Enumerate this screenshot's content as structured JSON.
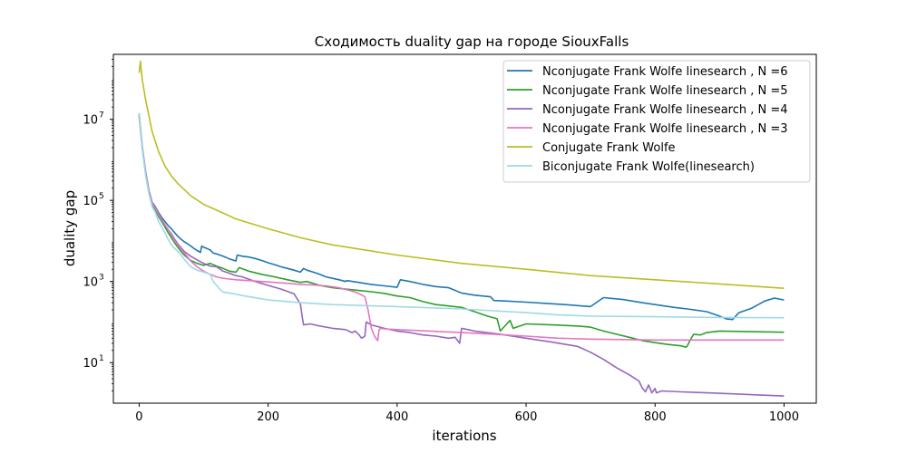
{
  "chart_data": {
    "type": "line",
    "title": "Сходимость duality gap на городе SiouxFalls",
    "xlabel": "iterations",
    "ylabel": "duality gap",
    "xlim": [
      -40,
      1050
    ],
    "ylim_log10": [
      0.0,
      8.6
    ],
    "y_scale": "log",
    "grid": false,
    "legend_position": "top-right",
    "x_ticks": [
      0,
      200,
      400,
      600,
      800,
      1000
    ],
    "x_tick_labels": [
      "0",
      "200",
      "400",
      "600",
      "800",
      "1000"
    ],
    "y_ticks_log10": [
      1,
      3,
      5,
      7
    ],
    "y_tick_labels": [
      "10",
      "10",
      "10",
      "10"
    ],
    "y_tick_exponents": [
      "1",
      "3",
      "5",
      "7"
    ],
    "series": [
      {
        "name": "Nconjugate Frank Wolfe linesearch , N =6",
        "color": "#1f77b4",
        "x": [
          0,
          5,
          10,
          15,
          20,
          25,
          30,
          35,
          40,
          45,
          50,
          55,
          60,
          65,
          70,
          75,
          80,
          85,
          90,
          95,
          97,
          100,
          105,
          110,
          115,
          120,
          125,
          130,
          135,
          140,
          145,
          150,
          152,
          160,
          170,
          180,
          190,
          200,
          210,
          220,
          230,
          240,
          250,
          255,
          260,
          270,
          280,
          290,
          300,
          310,
          320,
          322,
          340,
          360,
          380,
          400,
          405,
          420,
          440,
          460,
          480,
          500,
          520,
          545,
          550,
          570,
          600,
          630,
          660,
          700,
          720,
          750,
          780,
          800,
          830,
          850,
          880,
          900,
          910,
          920,
          930,
          950,
          970,
          985,
          1000
        ],
        "y": [
          14000000,
          2000000,
          500000,
          180000,
          90000,
          70000,
          50000,
          38000,
          30000,
          24000,
          20000,
          16000,
          13000,
          11000,
          9500,
          8500,
          7500,
          6500,
          5800,
          5200,
          7500,
          7000,
          6500,
          6000,
          5000,
          4800,
          4500,
          4200,
          3900,
          3600,
          3400,
          3200,
          4500,
          4200,
          4000,
          3700,
          3300,
          2900,
          2600,
          2300,
          2100,
          1900,
          1700,
          2100,
          1900,
          1700,
          1500,
          1300,
          1200,
          1100,
          1000,
          1050,
          950,
          850,
          780,
          720,
          1100,
          1000,
          850,
          750,
          700,
          520,
          460,
          420,
          340,
          330,
          310,
          290,
          270,
          240,
          400,
          360,
          300,
          270,
          230,
          210,
          180,
          140,
          120,
          115,
          170,
          220,
          330,
          390,
          350
        ]
      },
      {
        "name": "Nconjugate Frank Wolfe linesearch , N =5",
        "color": "#2ca02c",
        "x": [
          0,
          5,
          10,
          15,
          20,
          25,
          30,
          35,
          40,
          45,
          50,
          55,
          60,
          65,
          70,
          75,
          80,
          90,
          100,
          110,
          120,
          130,
          140,
          150,
          155,
          170,
          190,
          210,
          230,
          250,
          260,
          280,
          300,
          320,
          340,
          360,
          380,
          400,
          420,
          440,
          460,
          480,
          500,
          520,
          540,
          555,
          560,
          575,
          580,
          600,
          640,
          680,
          700,
          720,
          740,
          760,
          780,
          800,
          820,
          840,
          848,
          850,
          856,
          860,
          870,
          880,
          900,
          950,
          1000
        ],
        "y": [
          12000000,
          1800000,
          450000,
          160000,
          80000,
          60000,
          40000,
          30000,
          22000,
          16000,
          12000,
          9000,
          7000,
          5500,
          4500,
          3800,
          3300,
          2800,
          2500,
          2800,
          2400,
          2100,
          1800,
          1700,
          2200,
          1800,
          1500,
          1300,
          1100,
          950,
          1000,
          800,
          700,
          650,
          600,
          560,
          510,
          440,
          400,
          320,
          270,
          250,
          230,
          180,
          140,
          120,
          60,
          110,
          70,
          90,
          85,
          80,
          75,
          60,
          50,
          42,
          35,
          31,
          28,
          26,
          24,
          26,
          40,
          50,
          48,
          55,
          60,
          58,
          56
        ]
      },
      {
        "name": "Nconjugate Frank Wolfe linesearch , N =4",
        "color": "#9467bd",
        "x": [
          0,
          5,
          10,
          15,
          20,
          25,
          30,
          35,
          40,
          45,
          50,
          55,
          60,
          65,
          70,
          80,
          90,
          100,
          110,
          120,
          130,
          140,
          150,
          160,
          180,
          200,
          220,
          240,
          250,
          253,
          255,
          265,
          280,
          300,
          320,
          330,
          335,
          340,
          345,
          350,
          352,
          360,
          380,
          400,
          420,
          440,
          460,
          480,
          490,
          497,
          500,
          510,
          520,
          560,
          600,
          640,
          680,
          700,
          720,
          740,
          760,
          775,
          780,
          785,
          790,
          795,
          800,
          802,
          810,
          840,
          880,
          920,
          960,
          1000
        ],
        "y": [
          13000000,
          1900000,
          470000,
          170000,
          85000,
          65000,
          45000,
          33000,
          25000,
          19000,
          15000,
          11000,
          8500,
          6800,
          5500,
          4200,
          3400,
          2800,
          2400,
          2300,
          1800,
          1600,
          1400,
          1300,
          1000,
          800,
          650,
          500,
          280,
          130,
          85,
          90,
          80,
          70,
          65,
          55,
          60,
          50,
          40,
          45,
          100,
          85,
          70,
          60,
          55,
          48,
          45,
          40,
          42,
          30,
          70,
          65,
          60,
          50,
          40,
          32,
          25,
          18,
          12,
          7.5,
          5,
          3.5,
          2.4,
          1.9,
          2.8,
          1.8,
          2.3,
          1.8,
          2.0,
          1.9,
          1.8,
          1.7,
          1.6,
          1.5
        ]
      },
      {
        "name": "Nconjugate Frank Wolfe linesearch , N =3",
        "color": "#e377c2",
        "x": [
          0,
          5,
          10,
          15,
          20,
          25,
          30,
          35,
          40,
          45,
          50,
          55,
          60,
          70,
          80,
          90,
          100,
          110,
          120,
          130,
          140,
          150,
          170,
          190,
          210,
          230,
          250,
          270,
          290,
          310,
          330,
          340,
          350,
          355,
          360,
          365,
          368,
          370,
          372,
          375,
          380,
          400,
          450,
          500,
          550,
          600,
          650,
          700,
          750,
          800,
          850,
          900,
          950,
          1000
        ],
        "y": [
          13000000,
          1900000,
          460000,
          170000,
          85000,
          65000,
          45000,
          33000,
          25000,
          19000,
          14000,
          10000,
          8000,
          5000,
          3200,
          2300,
          1800,
          1500,
          1300,
          1200,
          1150,
          1100,
          1050,
          1000,
          950,
          900,
          850,
          820,
          780,
          700,
          580,
          510,
          420,
          200,
          70,
          45,
          38,
          35,
          65,
          70,
          68,
          65,
          60,
          55,
          50,
          45,
          40,
          38,
          37,
          36,
          36,
          36,
          36,
          36
        ]
      },
      {
        "name": "Conjugate Frank Wolfe",
        "color": "#bcbd22",
        "x": [
          0,
          1,
          2,
          3,
          5,
          10,
          20,
          30,
          40,
          50,
          60,
          80,
          100,
          150,
          200,
          250,
          300,
          400,
          500,
          600,
          700,
          800,
          900,
          1000
        ],
        "y": [
          140000000,
          200000000,
          270000000,
          170000000,
          90000000,
          30000000,
          5000000,
          1600000,
          700000,
          400000,
          260000,
          130000,
          80000,
          35000,
          20000,
          12000,
          8000,
          4500,
          2800,
          2000,
          1400,
          1100,
          870,
          680
        ]
      },
      {
        "name": "Biconjugate Frank Wolfe(linesearch)",
        "color": "#9edae5",
        "x": [
          0,
          5,
          10,
          15,
          20,
          25,
          30,
          35,
          40,
          45,
          50,
          55,
          60,
          65,
          70,
          80,
          90,
          100,
          110,
          115,
          120,
          125,
          130,
          140,
          160,
          200,
          250,
          300,
          400,
          500,
          550,
          600,
          650,
          700,
          800,
          900,
          1000
        ],
        "y": [
          14000000,
          1800000,
          400000,
          150000,
          70000,
          50000,
          30000,
          22000,
          16000,
          11000,
          8000,
          6500,
          5500,
          4500,
          3500,
          2300,
          1900,
          1700,
          1500,
          1000,
          800,
          650,
          550,
          520,
          450,
          350,
          300,
          270,
          240,
          210,
          190,
          170,
          150,
          140,
          135,
          130,
          128
        ]
      }
    ]
  }
}
